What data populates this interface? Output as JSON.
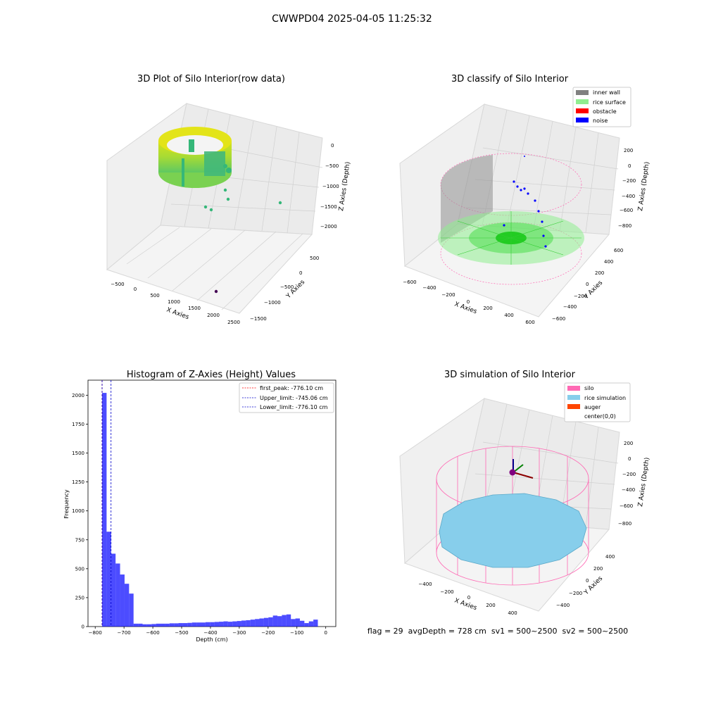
{
  "figure_title": "CWWPD04 2025-04-05 11:25:32",
  "colors": {
    "histogram": "#0000ff",
    "first_peak": "#ff0000",
    "limit": "#0000cc",
    "inner_wall": "#808080",
    "rice_surface": "#90ee90",
    "obstacle": "#ff0000",
    "noise": "#0000ff",
    "silo": "#ff69b4",
    "rice_simulation": "#87ceeb",
    "auger": "#ff4500"
  },
  "chart_data": [
    {
      "type": "scatter",
      "title": "3D Plot of Silo Interior(row data)",
      "xlabel": "X Axies",
      "ylabel": "Y Axies",
      "zlabel": "Z Axies (Depth)",
      "x_ticks": [
        "−500",
        "0",
        "500",
        "1000",
        "1500",
        "2000",
        "2500"
      ],
      "y_ticks": [
        "500",
        "0",
        "−500",
        "−1000",
        "−1500"
      ],
      "z_ticks": [
        "0",
        "−500",
        "−1000",
        "−1500",
        "−2000"
      ]
    },
    {
      "type": "scatter",
      "title": "3D classify of Silo Interior",
      "xlabel": "X Axies",
      "ylabel": "Y Axies",
      "zlabel": "Z Axies (Depth)",
      "x_ticks": [
        "−600",
        "−400",
        "−200",
        "0",
        "200",
        "400",
        "600"
      ],
      "y_ticks": [
        "600",
        "400",
        "200",
        "0",
        "−200",
        "−400",
        "−600"
      ],
      "z_ticks": [
        "200",
        "0",
        "−200",
        "−400",
        "−600",
        "−800"
      ],
      "legend": [
        "inner wall",
        "rice surface",
        "obstacle",
        "noise"
      ],
      "legend_position": "top-right"
    },
    {
      "type": "bar",
      "title": "Histogram of Z-Axies (Height) Values",
      "xlabel": "Depth (cm)",
      "ylabel": "Frequency",
      "xlim": [
        -825,
        35
      ],
      "ylim": [
        0,
        2130
      ],
      "x_ticks": [
        -800,
        -700,
        -600,
        -500,
        -400,
        -300,
        -200,
        -100,
        0
      ],
      "x_tick_labels": [
        "−800",
        "−700",
        "−600",
        "−500",
        "−400",
        "−300",
        "−200",
        "−100",
        "0"
      ],
      "y_ticks": [
        0,
        250,
        500,
        750,
        1000,
        1250,
        1500,
        1750,
        2000
      ],
      "bin_start": -776.1,
      "bin_width": 15.6,
      "values": [
        2020,
        820,
        630,
        545,
        450,
        370,
        285,
        25,
        25,
        20,
        20,
        22,
        25,
        25,
        25,
        28,
        28,
        30,
        30,
        32,
        35,
        35,
        35,
        38,
        38,
        40,
        42,
        45,
        42,
        45,
        48,
        52,
        55,
        60,
        65,
        70,
        75,
        80,
        95,
        90,
        100,
        105,
        65,
        70,
        50,
        30,
        45,
        60
      ],
      "lines": [
        {
          "name": "first_peak: -776.10 cm",
          "x": -776.1,
          "style": "red"
        },
        {
          "name": "Upper_limit: -745.06 cm",
          "x": -745.06,
          "style": "blue"
        },
        {
          "name": "Lower_limit: -776.10 cm",
          "x": -776.1,
          "style": "blue"
        }
      ],
      "legend_position": "top-right"
    },
    {
      "type": "scatter",
      "title": "3D simulation of Silo Interior",
      "xlabel": "X Axies",
      "ylabel": "Y Axies",
      "zlabel": "Z Axies (Depth)",
      "x_ticks": [
        "−400",
        "−200",
        "0",
        "200",
        "400"
      ],
      "y_ticks": [
        "400",
        "200",
        "0",
        "−200",
        "−400"
      ],
      "z_ticks": [
        "200",
        "0",
        "−200",
        "−400",
        "−600",
        "−800"
      ],
      "legend": [
        "silo",
        "rice simulation",
        "auger",
        "center(0,0)"
      ],
      "legend_position": "top-right"
    }
  ],
  "status_text": "flag = 29  avgDepth = 728 cm  sv1 = 500~2500  sv2 = 500~2500"
}
